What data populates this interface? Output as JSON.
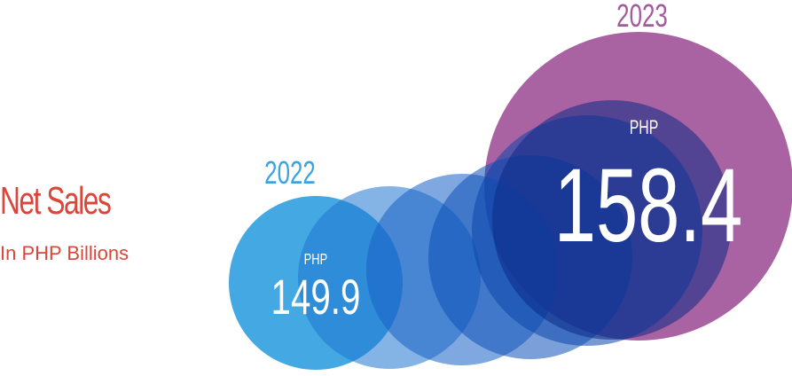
{
  "header": {
    "title": "Net Sales",
    "subtitle": "In PHP Billions"
  },
  "colors": {
    "title": "#d9473b",
    "circle_light": "#3aa4e0",
    "circle_deep": "#0a3aa0",
    "circle_2023": "#a45a9d",
    "year_2022": "#3aa4e0",
    "year_2023": "#a45a9d",
    "text_on_circle": "#ffffff"
  },
  "chart_data": {
    "type": "bubble",
    "title": "Net Sales",
    "subtitle": "In PHP Billions",
    "unit": "PHP",
    "series": [
      {
        "year": "2022",
        "currency": "PHP",
        "value": 149.9,
        "label": "149.9"
      },
      {
        "year": "",
        "value": null
      },
      {
        "year": "",
        "value": null
      },
      {
        "year": "",
        "value": null
      },
      {
        "year": "",
        "value": null
      },
      {
        "year": "2023",
        "currency": "PHP",
        "value": 158.4,
        "label": "158.4"
      }
    ]
  }
}
